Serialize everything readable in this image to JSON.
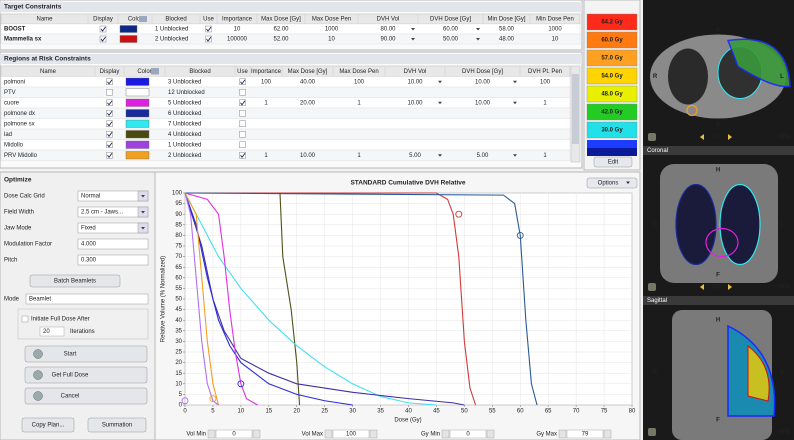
{
  "target_constraints": {
    "title": "Target Constraints",
    "columns": [
      "Name",
      "Display",
      "Color",
      "Blocked",
      "Use",
      "Importance",
      "Max Dose [Gy]",
      "Max Dose Pen",
      "DVH Vol",
      "DVH Dose [Gy]",
      "Min Dose [Gy]",
      "Min Dose Pen"
    ],
    "rows": [
      {
        "name": "BOOST",
        "display": true,
        "color": "#0b2a86",
        "blocked": "1 Unblocked",
        "use": true,
        "cells": [
          "10",
          "62.00",
          "1000",
          "80.00",
          "60.00",
          "58.00",
          "1000"
        ]
      },
      {
        "name": "Mammella sx",
        "display": true,
        "color": "#cc1010",
        "blocked": "2 Unblocked",
        "use": true,
        "cells": [
          "100000",
          "52.00",
          "10",
          "90.00",
          "50.00",
          "48.00",
          "10"
        ]
      }
    ]
  },
  "regions_at_risk": {
    "title": "Regions at Risk Constraints",
    "columns": [
      "Name",
      "Display",
      "Color",
      "Blocked",
      "Use",
      "Importance",
      "Max Dose [Gy]",
      "Max Dose Pen",
      "DVH Vol",
      "DVH Dose [Gy]",
      "DVH Pt. Pen"
    ],
    "rows": [
      {
        "name": "polmoni",
        "display": true,
        "color": "#1a1ae0",
        "blocked": "3 Unblocked",
        "use": true,
        "cells": [
          "100",
          "40.00",
          "100",
          "10.00",
          "10.00",
          "100"
        ]
      },
      {
        "name": "PTV",
        "display": false,
        "color": "#ffffff",
        "blocked": "12 Unblocked",
        "use": false,
        "cells": [
          null,
          null,
          null,
          null,
          null,
          null
        ]
      },
      {
        "name": "cuore",
        "display": true,
        "color": "#e020e0",
        "blocked": "5 Unblocked",
        "use": true,
        "cells": [
          "1",
          "20.00",
          "1",
          "10.00",
          "10.00",
          "1"
        ]
      },
      {
        "name": "polmone dx",
        "display": true,
        "color": "#1a2a9a",
        "blocked": "6 Unblocked",
        "use": false,
        "cells": [
          null,
          null,
          null,
          null,
          null,
          null
        ]
      },
      {
        "name": "polmone sx",
        "display": true,
        "color": "#30e8f0",
        "blocked": "7 Unblocked",
        "use": false,
        "cells": [
          null,
          null,
          null,
          null,
          null,
          null
        ]
      },
      {
        "name": "lad",
        "display": true,
        "color": "#4a4a10",
        "blocked": "4 Unblocked",
        "use": false,
        "cells": [
          null,
          null,
          null,
          null,
          null,
          null
        ]
      },
      {
        "name": "Midollo",
        "display": true,
        "color": "#a040e0",
        "blocked": "1 Unblocked",
        "use": false,
        "cells": [
          null,
          null,
          null,
          null,
          null,
          null
        ]
      },
      {
        "name": "PRV Midollo",
        "display": true,
        "color": "#f0a020",
        "blocked": "2 Unblocked",
        "use": true,
        "cells": [
          "1",
          "10.00",
          "1",
          "5.00",
          "5.00",
          "1"
        ]
      }
    ]
  },
  "isodose": {
    "levels": [
      {
        "label": "64.2 Gy",
        "color": "#ff2a1a"
      },
      {
        "label": "60.0 Gy",
        "color": "#ff7a10"
      },
      {
        "label": "57.0 Gy",
        "color": "#ffa020"
      },
      {
        "label": "54.0 Gy",
        "color": "#ffd400"
      },
      {
        "label": "48.0 Gy",
        "color": "#e8f000"
      },
      {
        "label": "42.0 Gy",
        "color": "#22cc22"
      },
      {
        "label": "30.0 Gy",
        "color": "#22e0e8"
      }
    ],
    "unlabeled_colors": [
      "#1c3cff",
      "#0a1a99"
    ],
    "edit": "Edit"
  },
  "optimize": {
    "title": "Optimize",
    "fields": [
      {
        "label": "Dose Calc Grid",
        "value": "Normal",
        "kind": "select"
      },
      {
        "label": "Field Width",
        "value": "2.5 cm - Jaws...",
        "kind": "select"
      },
      {
        "label": "Jaw Mode",
        "value": "Fixed",
        "kind": "select"
      },
      {
        "label": "Modulation Factor",
        "value": "4.000",
        "kind": "input"
      },
      {
        "label": "Pitch",
        "value": "0.300",
        "kind": "input"
      }
    ],
    "batch": "Batch Beamlets",
    "mode_label": "Mode",
    "mode": "Beamlet",
    "initiate": "Initiate Full Dose After",
    "iterations_value": "20",
    "iterations": "Iterations",
    "buttons": [
      "Start",
      "Get Full Dose",
      "Cancel"
    ],
    "copy": "Copy Plan...",
    "summation": "Summation"
  },
  "chart_data": {
    "type": "line",
    "title": "STANDARD Cumulative DVH Relative",
    "x_label": "Dose (Gy)",
    "y_label": "Relative Volume (% Normalized)",
    "xlim": [
      0,
      80
    ],
    "ylim": [
      0,
      100
    ],
    "xticks": [
      0,
      5,
      10,
      15,
      20,
      25,
      30,
      35,
      40,
      45,
      50,
      55,
      60,
      65,
      70,
      75,
      80
    ],
    "yticks": [
      0,
      5,
      10,
      15,
      20,
      25,
      30,
      35,
      40,
      45,
      50,
      55,
      60,
      65,
      70,
      75,
      80,
      85,
      90,
      95,
      100
    ],
    "grid": true,
    "series": [
      {
        "color": "#d03a3a",
        "x": [
          0,
          45,
          47,
          48,
          49,
          50,
          51,
          52
        ],
        "y": [
          100,
          100,
          97,
          90,
          70,
          30,
          8,
          0
        ]
      },
      {
        "color": "#2a5a9a",
        "x": [
          0,
          57,
          59,
          60,
          61,
          62,
          63
        ],
        "y": [
          100,
          99,
          95,
          80,
          40,
          10,
          0
        ]
      },
      {
        "color": "#50501a",
        "x": [
          17,
          17.5,
          19,
          20,
          20.5
        ],
        "y": [
          100,
          70,
          45,
          20,
          0
        ]
      },
      {
        "color": "#40e0f0",
        "x": [
          0,
          3,
          6,
          10,
          15,
          20,
          25,
          30,
          35,
          40,
          45
        ],
        "y": [
          100,
          85,
          70,
          55,
          40,
          28,
          18,
          10,
          4,
          1,
          0
        ]
      },
      {
        "color": "#4030a0",
        "x": [
          0,
          3,
          5,
          7,
          10,
          15,
          20,
          30,
          40,
          48,
          50
        ],
        "y": [
          100,
          75,
          50,
          35,
          22,
          15,
          10,
          6,
          3,
          1,
          0
        ]
      },
      {
        "color": "#2a2ae0",
        "x": [
          0,
          2,
          4,
          6,
          8,
          10,
          15,
          20,
          25,
          30
        ],
        "y": [
          100,
          85,
          60,
          40,
          28,
          20,
          10,
          5,
          2,
          0
        ]
      },
      {
        "color": "#e030e0",
        "x": [
          0,
          4,
          6,
          7,
          8,
          9,
          10,
          11,
          13
        ],
        "y": [
          100,
          97,
          90,
          70,
          45,
          25,
          10,
          3,
          0
        ]
      },
      {
        "color": "#f0a020",
        "x": [
          0,
          2,
          3,
          4,
          5,
          6
        ],
        "y": [
          100,
          90,
          60,
          30,
          10,
          0
        ]
      },
      {
        "color": "#b070f0",
        "x": [
          0,
          1,
          2,
          3,
          4,
          5,
          6
        ],
        "y": [
          100,
          90,
          60,
          30,
          10,
          2,
          0
        ]
      }
    ],
    "markers": [
      {
        "x": 49,
        "y": 90,
        "color": "#d03a3a"
      },
      {
        "x": 60,
        "y": 80,
        "color": "#2a5a9a"
      },
      {
        "x": 10,
        "y": 10,
        "color": "#2a2ae0"
      },
      {
        "x": 5,
        "y": 3,
        "color": "#f0a020"
      },
      {
        "x": 0,
        "y": 2,
        "color": "#b070f0"
      }
    ],
    "options": "Options"
  },
  "range_controls": [
    {
      "label": "Vol Min",
      "value": "0"
    },
    {
      "label": "Vol Max",
      "value": "100"
    },
    {
      "label": "Gy Min",
      "value": "0"
    },
    {
      "label": "Gy Max",
      "value": "79"
    }
  ],
  "viewer": {
    "axial": {
      "slice": "34",
      "orientation": "HFS",
      "labels": [
        "A",
        "R",
        "L",
        "P"
      ]
    },
    "coronal": {
      "title": "Coronal",
      "slice": "106",
      "orientation": "HFS",
      "labels": [
        "H",
        "R",
        "L",
        "F"
      ]
    },
    "sagittal": {
      "title": "Sagittal",
      "orientation": "HFS",
      "labels": [
        "H",
        "P",
        "A",
        "F"
      ]
    }
  }
}
